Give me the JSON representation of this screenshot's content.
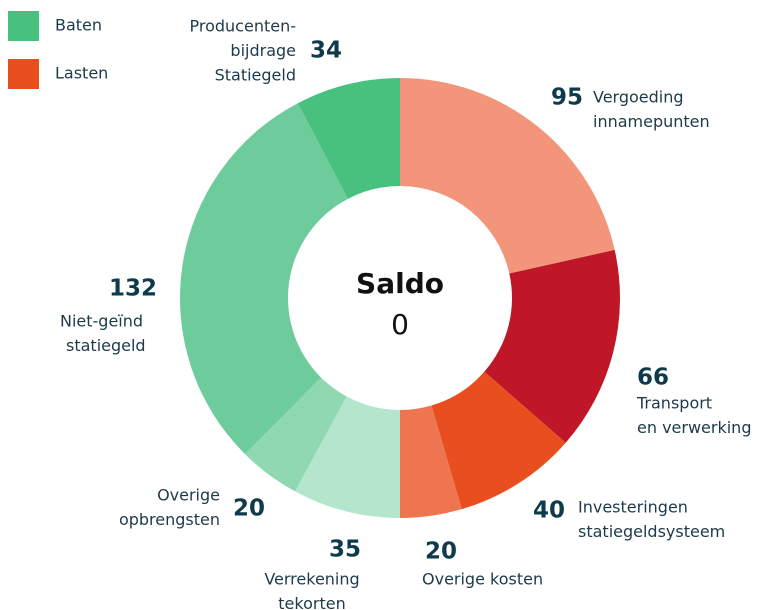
{
  "chart_data": {
    "type": "donut",
    "legend": [
      {
        "name": "Baten",
        "color": "#48c17f"
      },
      {
        "name": "Lasten",
        "color": "#e84e1e"
      }
    ],
    "categories": [
      [
        "Vergoeding",
        "innamepunten"
      ],
      [
        "Transport",
        "en verwerking"
      ],
      [
        "Investeringen",
        "statiegeldsysteem"
      ],
      [
        "Overige kosten"
      ],
      [
        "Verrekening",
        "tekorten"
      ],
      [
        "Overige",
        "opbrengsten"
      ],
      [
        "Niet-geïnd",
        "statiegeld"
      ],
      [
        "Producenten-",
        "bijdrage",
        "Statiegeld"
      ]
    ],
    "values": [
      95,
      66,
      40,
      20,
      35,
      20,
      132,
      34
    ],
    "colors": [
      "#f2957a",
      "#bf1727",
      "#e84e1e",
      "#ee7550",
      "#b4e6cd",
      "#8fd8b1",
      "#6ecc9c",
      "#48c17f"
    ],
    "center_title": "Saldo",
    "center_value": 0
  }
}
